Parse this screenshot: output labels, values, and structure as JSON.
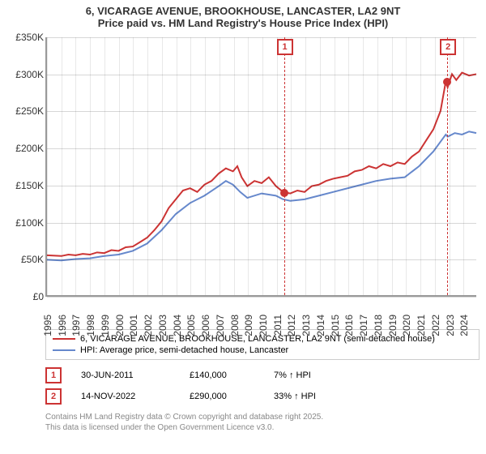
{
  "title": {
    "line1": "6, VICARAGE AVENUE, BROOKHOUSE, LANCASTER, LA2 9NT",
    "line2": "Price paid vs. HM Land Registry's House Price Index (HPI)"
  },
  "chart": {
    "type": "line",
    "background_color": "#ffffff",
    "grid_color": "#dddddd",
    "axis_color": "#999999",
    "x_min": 1995,
    "x_max": 2025,
    "y_min": 0,
    "y_max": 350000,
    "y_ticks": [
      0,
      50000,
      100000,
      150000,
      200000,
      250000,
      300000,
      350000
    ],
    "y_tick_labels": [
      "£0",
      "£50K",
      "£100K",
      "£150K",
      "£200K",
      "£250K",
      "£300K",
      "£350K"
    ],
    "x_ticks": [
      1995,
      1996,
      1997,
      1998,
      1999,
      2000,
      2001,
      2002,
      2003,
      2004,
      2005,
      2006,
      2007,
      2008,
      2009,
      2010,
      2011,
      2012,
      2013,
      2014,
      2015,
      2016,
      2017,
      2018,
      2019,
      2020,
      2021,
      2022,
      2023,
      2024
    ],
    "label_fontsize": 12,
    "series": [
      {
        "name": "price_paid",
        "label": "6, VICARAGE AVENUE, BROOKHOUSE, LANCASTER, LA2 9NT (semi-detached house)",
        "color": "#cc3333",
        "line_width": 2,
        "points": [
          [
            1995,
            54000
          ],
          [
            1996,
            53000
          ],
          [
            1996.5,
            55000
          ],
          [
            1997,
            54000
          ],
          [
            1997.5,
            56000
          ],
          [
            1998,
            55000
          ],
          [
            1998.5,
            58000
          ],
          [
            1999,
            57000
          ],
          [
            1999.5,
            61000
          ],
          [
            2000,
            60000
          ],
          [
            2000.5,
            65000
          ],
          [
            2001,
            66000
          ],
          [
            2001.5,
            72000
          ],
          [
            2002,
            78000
          ],
          [
            2002.5,
            88000
          ],
          [
            2003,
            100000
          ],
          [
            2003.5,
            118000
          ],
          [
            2004,
            130000
          ],
          [
            2004.5,
            142000
          ],
          [
            2005,
            145000
          ],
          [
            2005.5,
            140000
          ],
          [
            2006,
            150000
          ],
          [
            2006.5,
            155000
          ],
          [
            2007,
            165000
          ],
          [
            2007.5,
            172000
          ],
          [
            2008,
            168000
          ],
          [
            2008.3,
            175000
          ],
          [
            2008.6,
            160000
          ],
          [
            2009,
            148000
          ],
          [
            2009.5,
            155000
          ],
          [
            2010,
            152000
          ],
          [
            2010.5,
            160000
          ],
          [
            2011,
            148000
          ],
          [
            2011.5,
            140000
          ],
          [
            2012,
            138000
          ],
          [
            2012.5,
            142000
          ],
          [
            2013,
            140000
          ],
          [
            2013.5,
            148000
          ],
          [
            2014,
            150000
          ],
          [
            2014.5,
            155000
          ],
          [
            2015,
            158000
          ],
          [
            2015.5,
            160000
          ],
          [
            2016,
            162000
          ],
          [
            2016.5,
            168000
          ],
          [
            2017,
            170000
          ],
          [
            2017.5,
            175000
          ],
          [
            2018,
            172000
          ],
          [
            2018.5,
            178000
          ],
          [
            2019,
            175000
          ],
          [
            2019.5,
            180000
          ],
          [
            2020,
            178000
          ],
          [
            2020.5,
            188000
          ],
          [
            2021,
            195000
          ],
          [
            2021.5,
            210000
          ],
          [
            2022,
            225000
          ],
          [
            2022.5,
            250000
          ],
          [
            2022.87,
            290000
          ],
          [
            2023,
            282000
          ],
          [
            2023.3,
            300000
          ],
          [
            2023.6,
            292000
          ],
          [
            2024,
            302000
          ],
          [
            2024.5,
            298000
          ],
          [
            2025,
            300000
          ]
        ]
      },
      {
        "name": "hpi",
        "label": "HPI: Average price, semi-detached house, Lancaster",
        "color": "#6688cc",
        "line_width": 2,
        "points": [
          [
            1995,
            48000
          ],
          [
            1996,
            47000
          ],
          [
            1997,
            49000
          ],
          [
            1998,
            50000
          ],
          [
            1999,
            53000
          ],
          [
            2000,
            55000
          ],
          [
            2001,
            60000
          ],
          [
            2002,
            70000
          ],
          [
            2003,
            88000
          ],
          [
            2004,
            110000
          ],
          [
            2005,
            125000
          ],
          [
            2006,
            135000
          ],
          [
            2007,
            148000
          ],
          [
            2007.5,
            155000
          ],
          [
            2008,
            150000
          ],
          [
            2008.5,
            140000
          ],
          [
            2009,
            132000
          ],
          [
            2010,
            138000
          ],
          [
            2011,
            135000
          ],
          [
            2011.5,
            130000
          ],
          [
            2012,
            128000
          ],
          [
            2013,
            130000
          ],
          [
            2014,
            135000
          ],
          [
            2015,
            140000
          ],
          [
            2016,
            145000
          ],
          [
            2017,
            150000
          ],
          [
            2018,
            155000
          ],
          [
            2019,
            158000
          ],
          [
            2020,
            160000
          ],
          [
            2021,
            175000
          ],
          [
            2022,
            195000
          ],
          [
            2022.87,
            218000
          ],
          [
            2023,
            215000
          ],
          [
            2023.5,
            220000
          ],
          [
            2024,
            218000
          ],
          [
            2024.5,
            222000
          ],
          [
            2025,
            220000
          ]
        ]
      }
    ],
    "sale_markers": [
      {
        "n": "1",
        "x": 2011.5,
        "y": 140000,
        "color": "#cc3333"
      },
      {
        "n": "2",
        "x": 2022.87,
        "y": 290000,
        "color": "#cc3333"
      }
    ]
  },
  "legend": {
    "border_color": "#cccccc",
    "items": [
      {
        "color": "#cc3333",
        "label": "6, VICARAGE AVENUE, BROOKHOUSE, LANCASTER, LA2 9NT (semi-detached house)"
      },
      {
        "color": "#6688cc",
        "label": "HPI: Average price, semi-detached house, Lancaster"
      }
    ]
  },
  "sales": [
    {
      "n": "1",
      "date": "30-JUN-2011",
      "price": "£140,000",
      "hpi": "7% ↑ HPI"
    },
    {
      "n": "2",
      "date": "14-NOV-2022",
      "price": "£290,000",
      "hpi": "33% ↑ HPI"
    }
  ],
  "footer": {
    "line1": "Contains HM Land Registry data © Crown copyright and database right 2025.",
    "line2": "This data is licensed under the Open Government Licence v3.0."
  }
}
